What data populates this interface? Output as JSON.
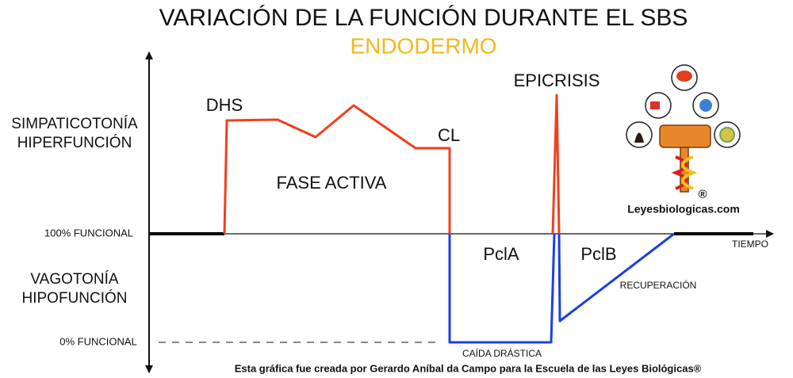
{
  "header": {
    "title": "VARIACIÓN DE LA FUNCIÓN DURANTE EL SBS",
    "subtitle": "ENDODERMO"
  },
  "left_labels": {
    "upper": [
      "SIMPATICOTONÍA",
      "HIPERFUNCIÓN"
    ],
    "normal": "100% FUNCIONAL",
    "lower": [
      "VAGOTONÍA",
      "HIPOFUNCIÓN"
    ],
    "zero": "0% FUNCIONAL"
  },
  "phases": {
    "dhs": "DHS",
    "active": "FASE ACTIVA",
    "cl": "CL",
    "epicrisis": "EPICRISIS",
    "pcla": "PclA",
    "pclb": "PclB",
    "recovery": "RECUPERACIÓN",
    "drop": "CAÍDA DRÁSTICA",
    "time": "TIEMPO"
  },
  "logo": {
    "site": "Leyesbiologicas.com",
    "mark": "®"
  },
  "footer": "Esta gráfica fue creada por Gerardo Aníbal da Campo para la Escuela de las Leyes Biológicas®"
}
